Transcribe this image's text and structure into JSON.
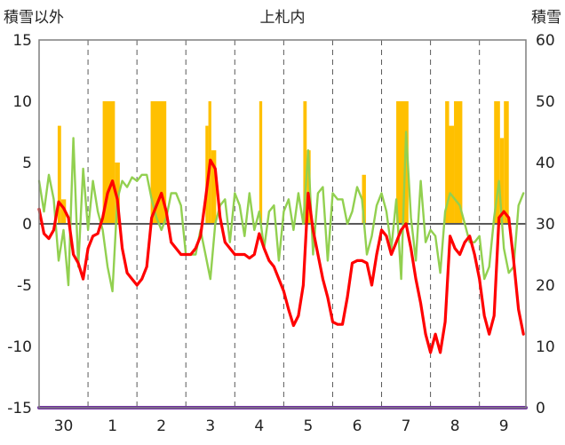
{
  "chart_data": {
    "type": "line",
    "title": "上札内",
    "left_axis_label": "積雪以外",
    "right_axis_label": "積雪",
    "left_ylim": [
      -15,
      15
    ],
    "left_yticks": [
      15,
      10,
      5,
      0,
      -5,
      -10,
      -15
    ],
    "right_ylim": [
      0,
      60
    ],
    "right_yticks": [
      60,
      50,
      40,
      30,
      20,
      10,
      0
    ],
    "x_range": [
      29.5,
      39.45
    ],
    "x_ticks": [
      {
        "x": 30,
        "label": "30"
      },
      {
        "x": 31,
        "label": "1"
      },
      {
        "x": 32,
        "label": "2"
      },
      {
        "x": 33,
        "label": "3"
      },
      {
        "x": 34,
        "label": "4"
      },
      {
        "x": 35,
        "label": "5"
      },
      {
        "x": 36,
        "label": "6"
      },
      {
        "x": 37,
        "label": "7"
      },
      {
        "x": 38,
        "label": "8"
      },
      {
        "x": 39,
        "label": "9"
      }
    ],
    "grid": "vertical dashed at day boundaries",
    "colors": {
      "precip_bars": "#FFC000",
      "temperature": "#FF0000",
      "green_series": "#92D050",
      "snow_depth": "#7030A0",
      "zero_line": "#595959"
    },
    "bar_blocks": [
      {
        "x0": 29.88,
        "x1": 29.95,
        "value": 8
      },
      {
        "x0": 29.95,
        "x1": 30.05,
        "value": 2
      },
      {
        "x0": 30.8,
        "x1": 31.05,
        "value": 10
      },
      {
        "x0": 31.05,
        "x1": 31.15,
        "value": 5
      },
      {
        "x0": 31.78,
        "x1": 32.1,
        "value": 10
      },
      {
        "x0": 32.9,
        "x1": 32.96,
        "value": 8
      },
      {
        "x0": 32.96,
        "x1": 33.02,
        "value": 10
      },
      {
        "x0": 33.02,
        "x1": 33.12,
        "value": 6
      },
      {
        "x0": 34.0,
        "x1": 34.06,
        "value": 10
      },
      {
        "x0": 34.9,
        "x1": 34.97,
        "value": 10
      },
      {
        "x0": 34.97,
        "x1": 35.05,
        "value": 6
      },
      {
        "x0": 36.1,
        "x1": 36.18,
        "value": 4
      },
      {
        "x0": 36.8,
        "x1": 37.05,
        "value": 10
      },
      {
        "x0": 37.8,
        "x1": 37.88,
        "value": 10
      },
      {
        "x0": 37.88,
        "x1": 37.98,
        "value": 8
      },
      {
        "x0": 37.98,
        "x1": 38.15,
        "value": 10
      },
      {
        "x0": 38.8,
        "x1": 38.92,
        "value": 10
      },
      {
        "x0": 38.92,
        "x1": 39.0,
        "value": 7
      },
      {
        "x0": 39.0,
        "x1": 39.1,
        "value": 10
      }
    ],
    "series": [
      {
        "name": "",
        "axis": "left",
        "color": "#FF0000",
        "points": [
          [
            29.5,
            1.2
          ],
          [
            29.6,
            -0.8
          ],
          [
            29.7,
            -1.2
          ],
          [
            29.8,
            -0.5
          ],
          [
            29.9,
            1.8
          ],
          [
            30.0,
            1.3
          ],
          [
            30.1,
            0.5
          ],
          [
            30.2,
            -2.5
          ],
          [
            30.3,
            -3.2
          ],
          [
            30.4,
            -4.5
          ],
          [
            30.5,
            -2.0
          ],
          [
            30.6,
            -1.0
          ],
          [
            30.7,
            -0.8
          ],
          [
            30.8,
            0.5
          ],
          [
            30.9,
            2.5
          ],
          [
            31.0,
            3.5
          ],
          [
            31.1,
            2.0
          ],
          [
            31.2,
            -2.0
          ],
          [
            31.3,
            -4.0
          ],
          [
            31.4,
            -4.5
          ],
          [
            31.5,
            -5.0
          ],
          [
            31.6,
            -4.5
          ],
          [
            31.7,
            -3.5
          ],
          [
            31.8,
            0.5
          ],
          [
            31.9,
            1.5
          ],
          [
            32.0,
            2.5
          ],
          [
            32.1,
            1.0
          ],
          [
            32.2,
            -1.5
          ],
          [
            32.3,
            -2.0
          ],
          [
            32.4,
            -2.5
          ],
          [
            32.5,
            -2.5
          ],
          [
            32.6,
            -2.5
          ],
          [
            32.7,
            -2.0
          ],
          [
            32.8,
            -1.0
          ],
          [
            32.9,
            2.0
          ],
          [
            33.0,
            5.2
          ],
          [
            33.1,
            4.5
          ],
          [
            33.2,
            0.5
          ],
          [
            33.3,
            -1.5
          ],
          [
            33.4,
            -2.0
          ],
          [
            33.5,
            -2.5
          ],
          [
            33.6,
            -2.5
          ],
          [
            33.7,
            -2.5
          ],
          [
            33.8,
            -2.8
          ],
          [
            33.9,
            -2.5
          ],
          [
            34.0,
            -0.8
          ],
          [
            34.1,
            -2.0
          ],
          [
            34.2,
            -3.0
          ],
          [
            34.3,
            -3.5
          ],
          [
            34.4,
            -4.5
          ],
          [
            34.5,
            -5.5
          ],
          [
            34.6,
            -7.0
          ],
          [
            34.7,
            -8.3
          ],
          [
            34.8,
            -7.5
          ],
          [
            34.9,
            -5.0
          ],
          [
            35.0,
            2.5
          ],
          [
            35.1,
            -0.5
          ],
          [
            35.2,
            -2.5
          ],
          [
            35.3,
            -4.5
          ],
          [
            35.4,
            -6.0
          ],
          [
            35.5,
            -8.0
          ],
          [
            35.6,
            -8.2
          ],
          [
            35.7,
            -8.2
          ],
          [
            35.8,
            -6.0
          ],
          [
            35.9,
            -3.2
          ],
          [
            36.0,
            -3.0
          ],
          [
            36.1,
            -3.0
          ],
          [
            36.2,
            -3.2
          ],
          [
            36.3,
            -5.0
          ],
          [
            36.4,
            -2.5
          ],
          [
            36.5,
            -0.5
          ],
          [
            36.6,
            -1.0
          ],
          [
            36.7,
            -2.5
          ],
          [
            36.8,
            -1.5
          ],
          [
            36.9,
            -0.5
          ],
          [
            37.0,
            0.0
          ],
          [
            37.1,
            -2.0
          ],
          [
            37.2,
            -4.5
          ],
          [
            37.3,
            -6.5
          ],
          [
            37.4,
            -9.0
          ],
          [
            37.5,
            -10.5
          ],
          [
            37.6,
            -9.0
          ],
          [
            37.7,
            -10.5
          ],
          [
            37.8,
            -8.0
          ],
          [
            37.9,
            -1.0
          ],
          [
            38.0,
            -2.0
          ],
          [
            38.1,
            -2.5
          ],
          [
            38.2,
            -1.5
          ],
          [
            38.3,
            -1.0
          ],
          [
            38.4,
            -2.5
          ],
          [
            38.5,
            -4.5
          ],
          [
            38.6,
            -7.5
          ],
          [
            38.7,
            -9.0
          ],
          [
            38.8,
            -7.5
          ],
          [
            38.9,
            0.5
          ],
          [
            39.0,
            1.0
          ],
          [
            39.1,
            0.5
          ],
          [
            39.2,
            -3.0
          ],
          [
            39.3,
            -7.0
          ],
          [
            39.4,
            -9.0
          ]
        ]
      },
      {
        "name": "",
        "axis": "left",
        "color": "#92D050",
        "points": [
          [
            29.5,
            3.5
          ],
          [
            29.6,
            1.0
          ],
          [
            29.7,
            4.0
          ],
          [
            29.8,
            2.0
          ],
          [
            29.9,
            -3.0
          ],
          [
            30.0,
            -0.5
          ],
          [
            30.1,
            -5.0
          ],
          [
            30.2,
            7.0
          ],
          [
            30.3,
            -3.5
          ],
          [
            30.4,
            4.5
          ],
          [
            30.5,
            -0.5
          ],
          [
            30.6,
            3.5
          ],
          [
            30.7,
            1.0
          ],
          [
            30.8,
            -0.5
          ],
          [
            30.9,
            -3.5
          ],
          [
            31.0,
            -5.5
          ],
          [
            31.1,
            2.0
          ],
          [
            31.2,
            3.5
          ],
          [
            31.3,
            3.0
          ],
          [
            31.4,
            3.8
          ],
          [
            31.5,
            3.5
          ],
          [
            31.6,
            4.0
          ],
          [
            31.7,
            4.0
          ],
          [
            31.8,
            2.0
          ],
          [
            31.9,
            0.5
          ],
          [
            32.0,
            -0.5
          ],
          [
            32.1,
            0.5
          ],
          [
            32.2,
            2.5
          ],
          [
            32.3,
            2.5
          ],
          [
            32.4,
            1.5
          ],
          [
            32.5,
            -2.5
          ],
          [
            32.6,
            -2.5
          ],
          [
            32.7,
            -2.5
          ],
          [
            32.8,
            -0.5
          ],
          [
            32.9,
            -2.5
          ],
          [
            33.0,
            -4.5
          ],
          [
            33.1,
            0.0
          ],
          [
            33.2,
            1.5
          ],
          [
            33.3,
            2.0
          ],
          [
            33.4,
            -1.5
          ],
          [
            33.5,
            2.5
          ],
          [
            33.6,
            1.5
          ],
          [
            33.7,
            -1.0
          ],
          [
            33.8,
            2.5
          ],
          [
            33.9,
            -0.5
          ],
          [
            34.0,
            1.0
          ],
          [
            34.1,
            -2.0
          ],
          [
            34.2,
            1.0
          ],
          [
            34.3,
            1.5
          ],
          [
            34.4,
            -3.0
          ],
          [
            34.5,
            1.0
          ],
          [
            34.6,
            2.0
          ],
          [
            34.7,
            -0.5
          ],
          [
            34.8,
            2.5
          ],
          [
            34.9,
            0.0
          ],
          [
            35.0,
            6.0
          ],
          [
            35.1,
            -2.5
          ],
          [
            35.2,
            2.5
          ],
          [
            35.3,
            3.0
          ],
          [
            35.4,
            -3.0
          ],
          [
            35.5,
            2.5
          ],
          [
            35.6,
            2.0
          ],
          [
            35.7,
            2.0
          ],
          [
            35.8,
            0.0
          ],
          [
            35.9,
            1.0
          ],
          [
            36.0,
            3.0
          ],
          [
            36.1,
            2.0
          ],
          [
            36.2,
            -2.5
          ],
          [
            36.3,
            -1.0
          ],
          [
            36.4,
            1.5
          ],
          [
            36.5,
            2.5
          ],
          [
            36.6,
            1.0
          ],
          [
            36.7,
            -2.0
          ],
          [
            36.8,
            2.0
          ],
          [
            36.9,
            -4.5
          ],
          [
            37.0,
            7.5
          ],
          [
            37.1,
            0.5
          ],
          [
            37.2,
            -3.0
          ],
          [
            37.3,
            3.5
          ],
          [
            37.4,
            -1.5
          ],
          [
            37.5,
            -0.5
          ],
          [
            37.6,
            -1.0
          ],
          [
            37.7,
            -4.0
          ],
          [
            37.8,
            1.0
          ],
          [
            37.9,
            2.5
          ],
          [
            38.0,
            2.0
          ],
          [
            38.1,
            1.5
          ],
          [
            38.2,
            0.0
          ],
          [
            38.3,
            -1.5
          ],
          [
            38.4,
            -1.5
          ],
          [
            38.5,
            -1.0
          ],
          [
            38.6,
            -4.5
          ],
          [
            38.7,
            -3.5
          ],
          [
            38.8,
            0.5
          ],
          [
            38.9,
            3.5
          ],
          [
            39.0,
            -2.0
          ],
          [
            39.1,
            -4.0
          ],
          [
            39.2,
            -3.5
          ],
          [
            39.3,
            1.5
          ],
          [
            39.4,
            2.5
          ]
        ]
      },
      {
        "name": "",
        "axis": "right",
        "color": "#7030A0",
        "points": [
          [
            29.5,
            0
          ],
          [
            39.45,
            0
          ]
        ]
      }
    ]
  }
}
